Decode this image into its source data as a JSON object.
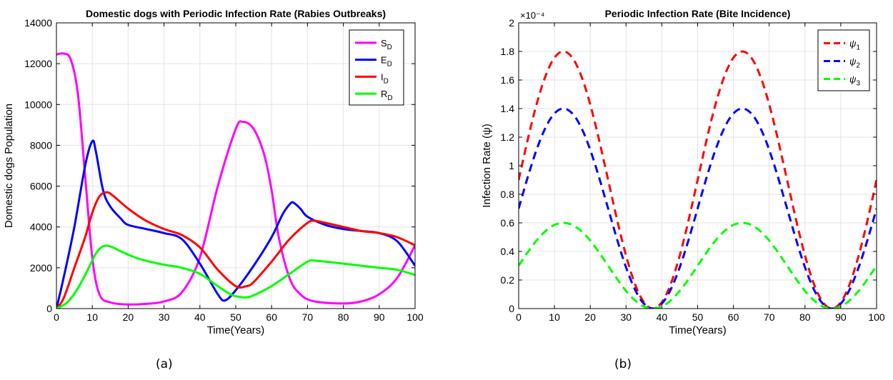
{
  "chart_data": [
    {
      "type": "line",
      "title": "Domestic dogs with Periodic Infection Rate (Rabies Outbreaks)",
      "xlabel": "Time(Years)",
      "ylabel": "Domestic dogs Population",
      "xlim": [
        0,
        100
      ],
      "ylim": [
        0,
        14000
      ],
      "xticks": [
        0,
        10,
        20,
        30,
        40,
        50,
        60,
        70,
        80,
        90,
        100
      ],
      "xtick_labels": [
        "0",
        "10",
        "20",
        "30",
        "40",
        "50",
        "60",
        "70",
        "80",
        "90",
        "100"
      ],
      "yticks": [
        0,
        2000,
        4000,
        6000,
        8000,
        10000,
        12000,
        14000
      ],
      "ytick_labels": [
        "0",
        "2000",
        "4000",
        "6000",
        "8000",
        "10000",
        "12000",
        "14000"
      ],
      "grid": true,
      "legend_position": "top-right",
      "caption": "(a)",
      "series": [
        {
          "name": "S_D",
          "label_main": "S",
          "label_sub": "D",
          "color": "#ff00ff",
          "points": [
            [
              0,
              12450
            ],
            [
              2,
              12500
            ],
            [
              4,
              12200
            ],
            [
              6,
              10500
            ],
            [
              8,
              6500
            ],
            [
              10,
              2500
            ],
            [
              12,
              700
            ],
            [
              15,
              300
            ],
            [
              20,
              200
            ],
            [
              25,
              230
            ],
            [
              30,
              350
            ],
            [
              35,
              800
            ],
            [
              40,
              2500
            ],
            [
              45,
              6000
            ],
            [
              50,
              8800
            ],
            [
              52,
              9150
            ],
            [
              55,
              8800
            ],
            [
              58,
              7500
            ],
            [
              60,
              5800
            ],
            [
              62,
              3500
            ],
            [
              65,
              1500
            ],
            [
              68,
              700
            ],
            [
              72,
              350
            ],
            [
              80,
              250
            ],
            [
              85,
              350
            ],
            [
              90,
              700
            ],
            [
              95,
              1500
            ],
            [
              100,
              3100
            ]
          ]
        },
        {
          "name": "E_D",
          "label_main": "E",
          "label_sub": "D",
          "color": "#0000ff",
          "points": [
            [
              0,
              0
            ],
            [
              2,
              1500
            ],
            [
              5,
              4000
            ],
            [
              8,
              7000
            ],
            [
              10,
              8200
            ],
            [
              11,
              7700
            ],
            [
              13,
              5800
            ],
            [
              15,
              5000
            ],
            [
              18,
              4400
            ],
            [
              20,
              4100
            ],
            [
              25,
              3900
            ],
            [
              30,
              3700
            ],
            [
              35,
              3400
            ],
            [
              40,
              2200
            ],
            [
              45,
              700
            ],
            [
              47,
              400
            ],
            [
              50,
              900
            ],
            [
              55,
              2100
            ],
            [
              60,
              3500
            ],
            [
              63,
              4600
            ],
            [
              65,
              5100
            ],
            [
              66,
              5200
            ],
            [
              68,
              4900
            ],
            [
              70,
              4500
            ],
            [
              75,
              4100
            ],
            [
              80,
              3900
            ],
            [
              85,
              3800
            ],
            [
              90,
              3700
            ],
            [
              95,
              3300
            ],
            [
              100,
              2100
            ]
          ]
        },
        {
          "name": "I_D",
          "label_main": "I",
          "label_sub": "D",
          "color": "#ff0000",
          "points": [
            [
              0,
              0
            ],
            [
              2,
              500
            ],
            [
              5,
              2000
            ],
            [
              8,
              3500
            ],
            [
              10,
              4700
            ],
            [
              12,
              5500
            ],
            [
              14,
              5700
            ],
            [
              16,
              5500
            ],
            [
              20,
              4900
            ],
            [
              25,
              4300
            ],
            [
              30,
              3900
            ],
            [
              35,
              3600
            ],
            [
              40,
              3000
            ],
            [
              45,
              1900
            ],
            [
              50,
              1100
            ],
            [
              53,
              1100
            ],
            [
              55,
              1300
            ],
            [
              60,
              2300
            ],
            [
              65,
              3400
            ],
            [
              70,
              4200
            ],
            [
              72,
              4300
            ],
            [
              75,
              4200
            ],
            [
              80,
              4000
            ],
            [
              85,
              3800
            ],
            [
              90,
              3700
            ],
            [
              95,
              3500
            ],
            [
              100,
              3100
            ]
          ]
        },
        {
          "name": "R_D",
          "label_main": "R",
          "label_sub": "D",
          "color": "#00ff00",
          "points": [
            [
              0,
              0
            ],
            [
              3,
              300
            ],
            [
              6,
              1000
            ],
            [
              9,
              2000
            ],
            [
              11,
              2700
            ],
            [
              13,
              3050
            ],
            [
              15,
              3050
            ],
            [
              18,
              2800
            ],
            [
              22,
              2500
            ],
            [
              26,
              2300
            ],
            [
              30,
              2150
            ],
            [
              35,
              2000
            ],
            [
              40,
              1700
            ],
            [
              45,
              1100
            ],
            [
              48,
              750
            ],
            [
              50,
              600
            ],
            [
              53,
              550
            ],
            [
              55,
              650
            ],
            [
              60,
              1100
            ],
            [
              65,
              1700
            ],
            [
              70,
              2300
            ],
            [
              72,
              2350
            ],
            [
              75,
              2300
            ],
            [
              80,
              2200
            ],
            [
              85,
              2100
            ],
            [
              90,
              2000
            ],
            [
              95,
              1900
            ],
            [
              100,
              1650
            ]
          ]
        }
      ]
    },
    {
      "type": "line",
      "title": "Periodic Infection Rate (Bite Incidence)",
      "xlabel": "Time(Years)",
      "ylabel": "Infection Rate (ψ)",
      "exponent": "×10⁻⁴",
      "xlim": [
        0,
        100
      ],
      "ylim": [
        0,
        2
      ],
      "xticks": [
        0,
        10,
        20,
        30,
        40,
        50,
        60,
        70,
        80,
        90,
        100
      ],
      "xtick_labels": [
        "0",
        "10",
        "20",
        "30",
        "40",
        "50",
        "60",
        "70",
        "80",
        "90",
        "100"
      ],
      "yticks": [
        0,
        0.2,
        0.4,
        0.6,
        0.8,
        1,
        1.2,
        1.4,
        1.6,
        1.8,
        2
      ],
      "ytick_labels": [
        "0",
        "0.2",
        "0.4",
        "0.6",
        "0.8",
        "1",
        "1.2",
        "1.4",
        "1.6",
        "1.8",
        "2"
      ],
      "grid": true,
      "legend_position": "top-right",
      "caption": "(b)",
      "series": [
        {
          "name": "ψ_1",
          "label_main": "ψ",
          "label_sub": "1",
          "color": "#ff0000",
          "amplitude": 1.8,
          "phase_peak": 12.5,
          "period": 50
        },
        {
          "name": "ψ_2",
          "label_main": "ψ",
          "label_sub": "2",
          "color": "#0000ff",
          "amplitude": 1.4,
          "phase_peak": 12.5,
          "period": 50
        },
        {
          "name": "ψ_3",
          "label_main": "ψ",
          "label_sub": "3",
          "color": "#00ff00",
          "amplitude": 0.6,
          "phase_peak": 12.5,
          "period": 50
        }
      ]
    }
  ]
}
